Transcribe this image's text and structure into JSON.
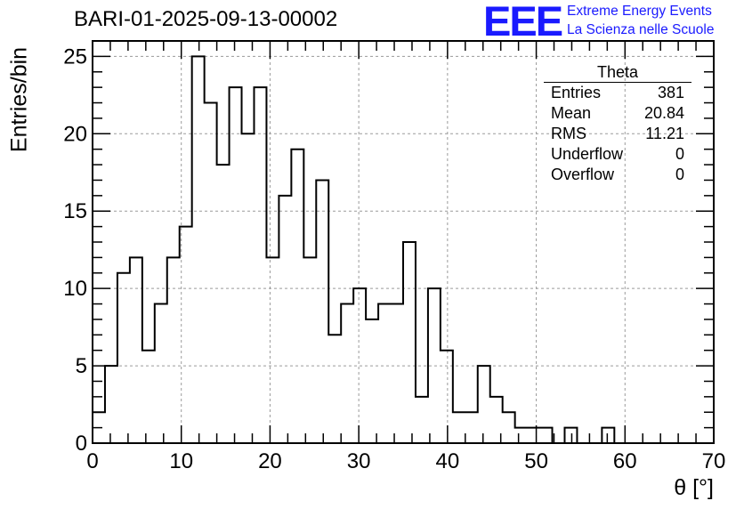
{
  "header": {
    "run_title": "BARI-01-2025-09-13-00002",
    "logo_text": "EEE",
    "logo_line1": "Extreme Energy Events",
    "logo_line2": "La Scienza nelle Scuole"
  },
  "stats_box": {
    "title": "Theta",
    "rows": [
      {
        "label": "Entries",
        "value": "381"
      },
      {
        "label": "Mean",
        "value": "20.84"
      },
      {
        "label": "RMS",
        "value": "11.21"
      },
      {
        "label": "Underflow",
        "value": "0"
      },
      {
        "label": "Overflow",
        "value": "0"
      }
    ]
  },
  "chart_data": {
    "type": "bar",
    "style": "step-histogram",
    "xlabel": "θ [°]",
    "ylabel": "Entries/bin",
    "xlim": [
      0,
      70
    ],
    "ylim": [
      0,
      26
    ],
    "bin_width": 1.4,
    "x_ticks": [
      0,
      10,
      20,
      30,
      40,
      50,
      60,
      70
    ],
    "y_ticks": [
      0,
      5,
      10,
      15,
      20,
      25
    ],
    "grid": true,
    "values": [
      2,
      5,
      11,
      12,
      6,
      9,
      12,
      14,
      25,
      22,
      18,
      23,
      20,
      23,
      12,
      16,
      19,
      12,
      17,
      7,
      9,
      10,
      8,
      9,
      9,
      13,
      3,
      10,
      6,
      2,
      2,
      5,
      3,
      2,
      1,
      1,
      1,
      0,
      1,
      0,
      0,
      1,
      0,
      0,
      0,
      0,
      0,
      0,
      0,
      0
    ],
    "colors": {
      "line": "#000000",
      "grid": "#9a9a9a",
      "logo": "#1a1aff"
    }
  }
}
